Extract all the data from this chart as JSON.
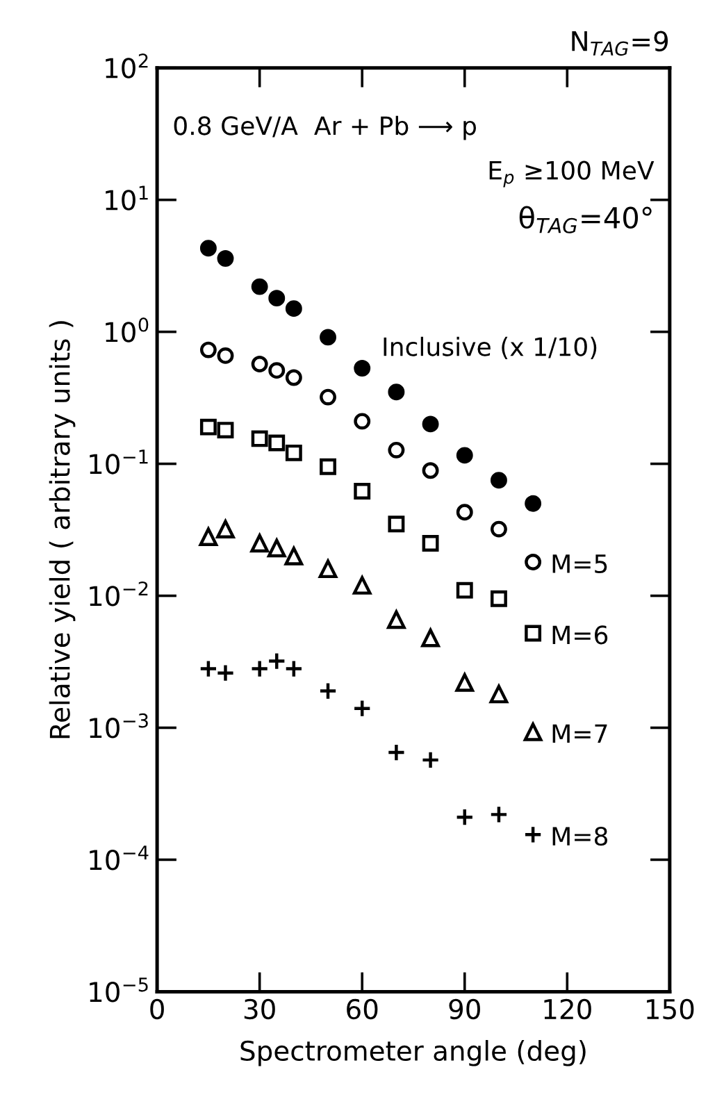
{
  "chart_data": {
    "type": "scatter",
    "xlabel": "Spectrometer angle (deg)",
    "ylabel": "Relative yield ( arbitrary units )",
    "x": [
      15,
      20,
      30,
      35,
      40,
      50,
      60,
      70,
      80,
      90,
      100,
      110
    ],
    "series": [
      {
        "name": "Inclusive (x 1/10)",
        "color": "#000000",
        "marker": "circle",
        "values": [
          4.3,
          3.6,
          2.2,
          1.8,
          1.5,
          0.91,
          0.53,
          0.35,
          0.2,
          0.116,
          0.075,
          0.05
        ]
      },
      {
        "name": "M=5",
        "color": "#000000",
        "marker": "circle",
        "values": [
          0.73,
          0.66,
          0.57,
          0.51,
          0.45,
          0.32,
          0.21,
          0.127,
          0.089,
          0.043,
          0.032,
          0.018
        ]
      },
      {
        "name": "M=6",
        "color": "#000000",
        "marker": "square",
        "values": [
          0.19,
          0.18,
          0.155,
          0.144,
          0.121,
          0.095,
          0.062,
          0.035,
          0.025,
          0.011,
          0.0095,
          0.0052
        ]
      },
      {
        "name": "M=7",
        "color": "#000000",
        "marker": "triangle",
        "values": [
          0.028,
          0.032,
          0.025,
          0.023,
          0.02,
          0.016,
          0.012,
          0.0066,
          0.0048,
          0.0022,
          0.0018,
          0.00093
        ]
      },
      {
        "name": "M=8",
        "color": "#000000",
        "marker": "cross",
        "values": [
          0.0028,
          0.0026,
          0.0028,
          0.0032,
          0.0028,
          0.0019,
          0.0014,
          0.00065,
          0.00057,
          0.00021,
          0.00022,
          0.000155
        ]
      }
    ],
    "annotations": [
      "N$_{TAG}$=9",
      "0.8 GeV/A  Ar + Pb ⟶ p",
      "E$_{p}$ ≥100 MeV",
      "θ$_{TAG}$=40°"
    ],
    "log": "y",
    "xlim": [
      0,
      150
    ],
    "xticks": [
      0,
      30,
      60,
      90,
      120,
      150
    ],
    "ylim": [
      1e-05,
      100
    ],
    "yticks": [
      {
        "value": 100,
        "label": "10$^{2}$"
      },
      {
        "value": 10,
        "label": "10$^{1}$"
      },
      {
        "value": 1,
        "label": "10$^{0}$"
      },
      {
        "value": 0.1,
        "label": "10$^{−1}$"
      },
      {
        "value": 0.01,
        "label": "10$^{−2}$"
      },
      {
        "value": 0.001,
        "label": "10$^{−3}$"
      },
      {
        "value": 0.0001,
        "label": "10$^{−4}$"
      },
      {
        "value": 1e-05,
        "label": "10$^{−5}$"
      }
    ],
    "grid": false,
    "legend": "right"
  }
}
